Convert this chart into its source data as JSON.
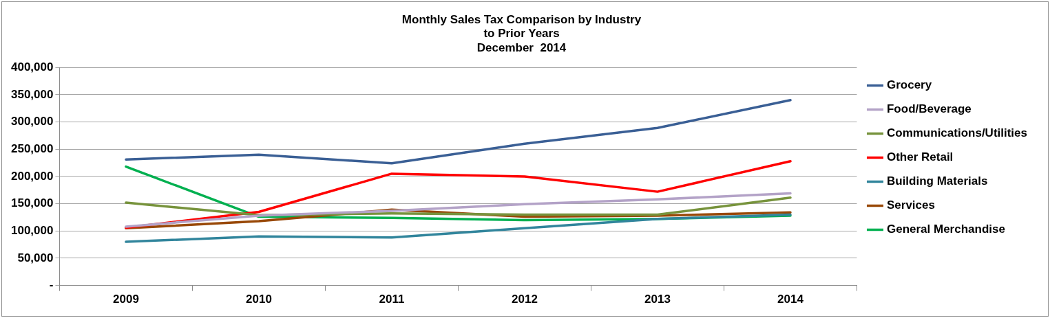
{
  "chart_data": {
    "type": "line",
    "title": "Monthly Sales Tax Comparison by Industry\nto Prior Years\nDecember  2014",
    "categories": [
      "2009",
      "2010",
      "2011",
      "2012",
      "2013",
      "2014"
    ],
    "series": [
      {
        "name": "Grocery",
        "color": "#3a5f95",
        "values": [
          231000,
          240000,
          224000,
          260000,
          289000,
          340000
        ]
      },
      {
        "name": "Food/Beverage",
        "color": "#b3a2c7",
        "values": [
          108000,
          128000,
          137000,
          149000,
          158000,
          169000
        ]
      },
      {
        "name": "Communications/Utilities",
        "color": "#77933c",
        "values": [
          152000,
          129000,
          132000,
          130000,
          130000,
          161000
        ]
      },
      {
        "name": "Other Retail",
        "color": "#ff0000",
        "values": [
          106000,
          135000,
          205000,
          200000,
          172000,
          228000
        ]
      },
      {
        "name": "Building Materials",
        "color": "#31859c",
        "values": [
          80000,
          90000,
          88000,
          105000,
          122000,
          130000
        ]
      },
      {
        "name": "Services",
        "color": "#984807",
        "values": [
          105000,
          118000,
          139000,
          126000,
          128000,
          134000
        ]
      },
      {
        "name": "General Merchandise",
        "color": "#00b050",
        "values": [
          218000,
          126000,
          124000,
          120000,
          122000,
          128000
        ]
      }
    ],
    "ylim": [
      0,
      400000
    ],
    "yticks": [
      {
        "value": 0,
        "label": "-"
      },
      {
        "value": 50000,
        "label": "50,000"
      },
      {
        "value": 100000,
        "label": "100,000"
      },
      {
        "value": 150000,
        "label": "150,000"
      },
      {
        "value": 200000,
        "label": "200,000"
      },
      {
        "value": 250000,
        "label": "250,000"
      },
      {
        "value": 300000,
        "label": "300,000"
      },
      {
        "value": 350000,
        "label": "350,000"
      },
      {
        "value": 400000,
        "label": "400,000"
      }
    ],
    "grid": "y",
    "legend": "right",
    "marker": "none",
    "line_style": "solid"
  }
}
